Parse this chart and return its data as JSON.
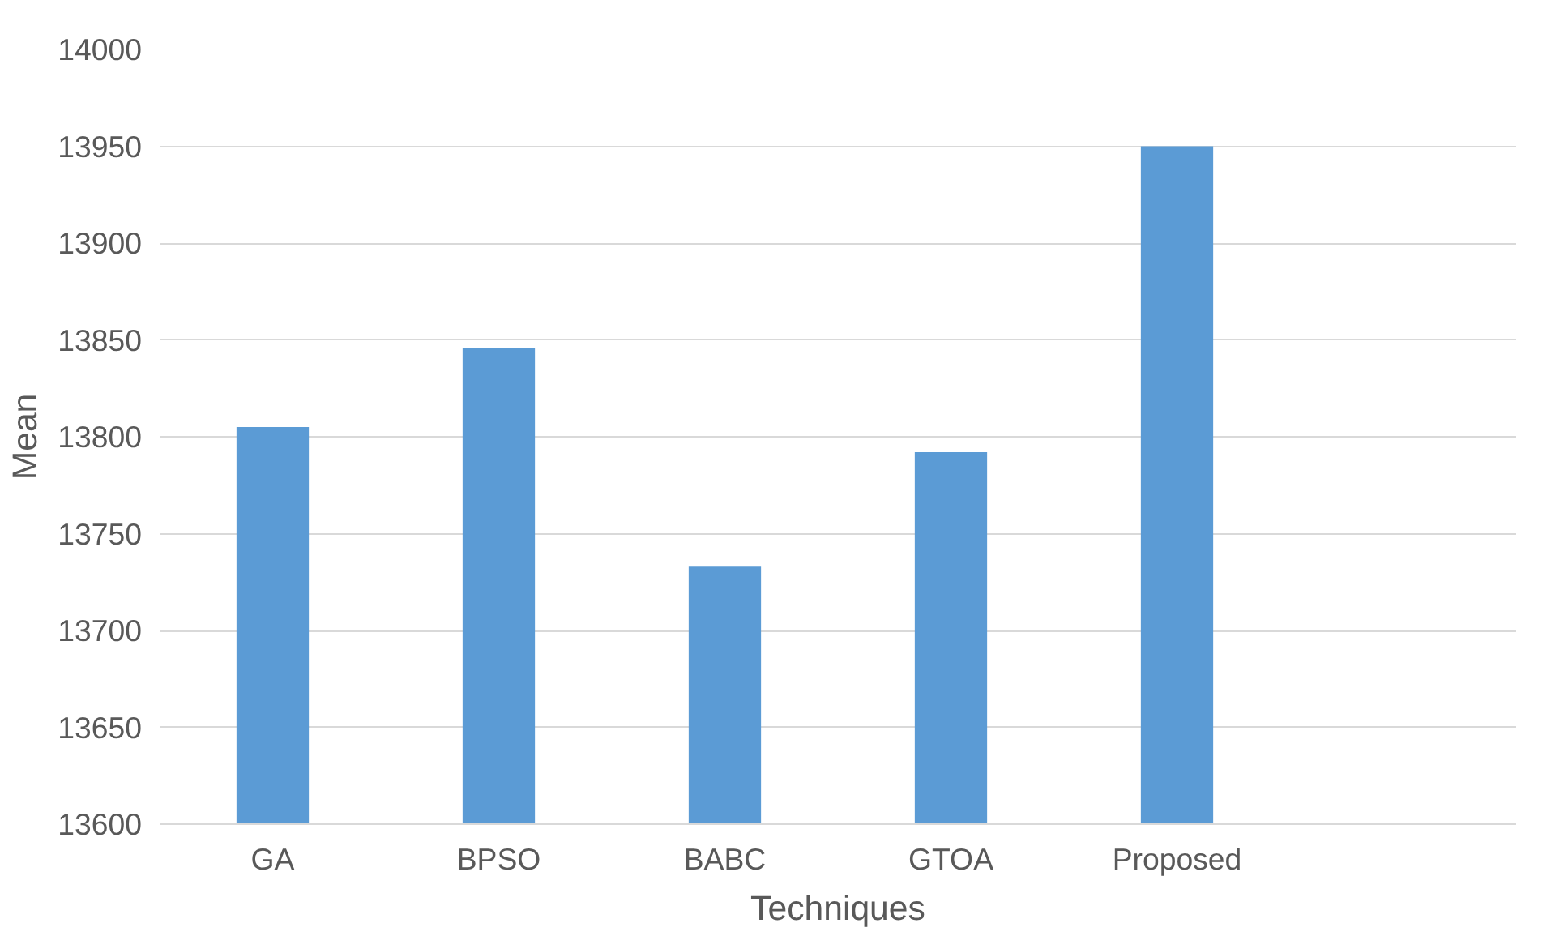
{
  "chart_data": {
    "type": "bar",
    "xlabel": "Techniques",
    "ylabel": "Mean",
    "categories": [
      "GA",
      "BPSO",
      "BABC",
      "GTOA",
      "Proposed",
      null
    ],
    "values": [
      13805,
      13846,
      13733,
      13792,
      13950,
      null
    ],
    "color": "#5b9bd5",
    "ylim": [
      13600,
      14000
    ],
    "yticks": [
      13600,
      13650,
      13700,
      13750,
      13800,
      13850,
      13900,
      13950,
      14000
    ],
    "grid": "y"
  }
}
